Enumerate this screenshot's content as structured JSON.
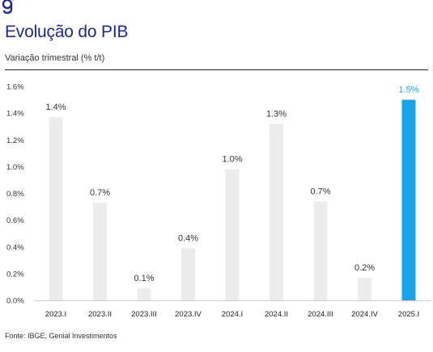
{
  "brand": {
    "logo_glyph": "g",
    "color": "#1f2a8a",
    "accent": "#1aa3e8"
  },
  "header": {
    "title": "Evolução do PIB",
    "subtitle": "Variação trimestral (% t/t)"
  },
  "footer": {
    "source": "Fonte: IBGE, Genial Investimentos"
  },
  "chart_data": {
    "type": "bar",
    "categories": [
      "2023.I",
      "2023.II",
      "2023.III",
      "2023.IV",
      "2024.I",
      "2024.II",
      "2024.III",
      "2024.IV",
      "2025.I"
    ],
    "values": [
      1.4,
      0.7,
      0.1,
      0.4,
      1.0,
      1.3,
      0.7,
      0.2,
      1.5
    ],
    "value_labels": [
      "1.4%",
      "0.7%",
      "0.1%",
      "0.4%",
      "1.0%",
      "1.3%",
      "0.7%",
      "0.2%",
      "1.5%"
    ],
    "bar_values": [
      1.37,
      0.73,
      0.09,
      0.39,
      0.98,
      1.32,
      0.74,
      0.17,
      1.5
    ],
    "ylim": [
      0,
      1.6
    ],
    "yticks": [
      0,
      0.2,
      0.4,
      0.6,
      0.8,
      1.0,
      1.2,
      1.4,
      1.6
    ],
    "ytick_labels": [
      "0.0%",
      "0.2%",
      "0.4%",
      "0.6%",
      "0.8%",
      "1.0%",
      "1.2%",
      "1.4%",
      "1.6%"
    ],
    "grid": false,
    "legend": "none",
    "colors": {
      "bar": "#ececec",
      "highlight": "#1aa3e8",
      "highlight_label": "#1aa3e8",
      "label": "#333333"
    },
    "highlight_index": 8
  }
}
